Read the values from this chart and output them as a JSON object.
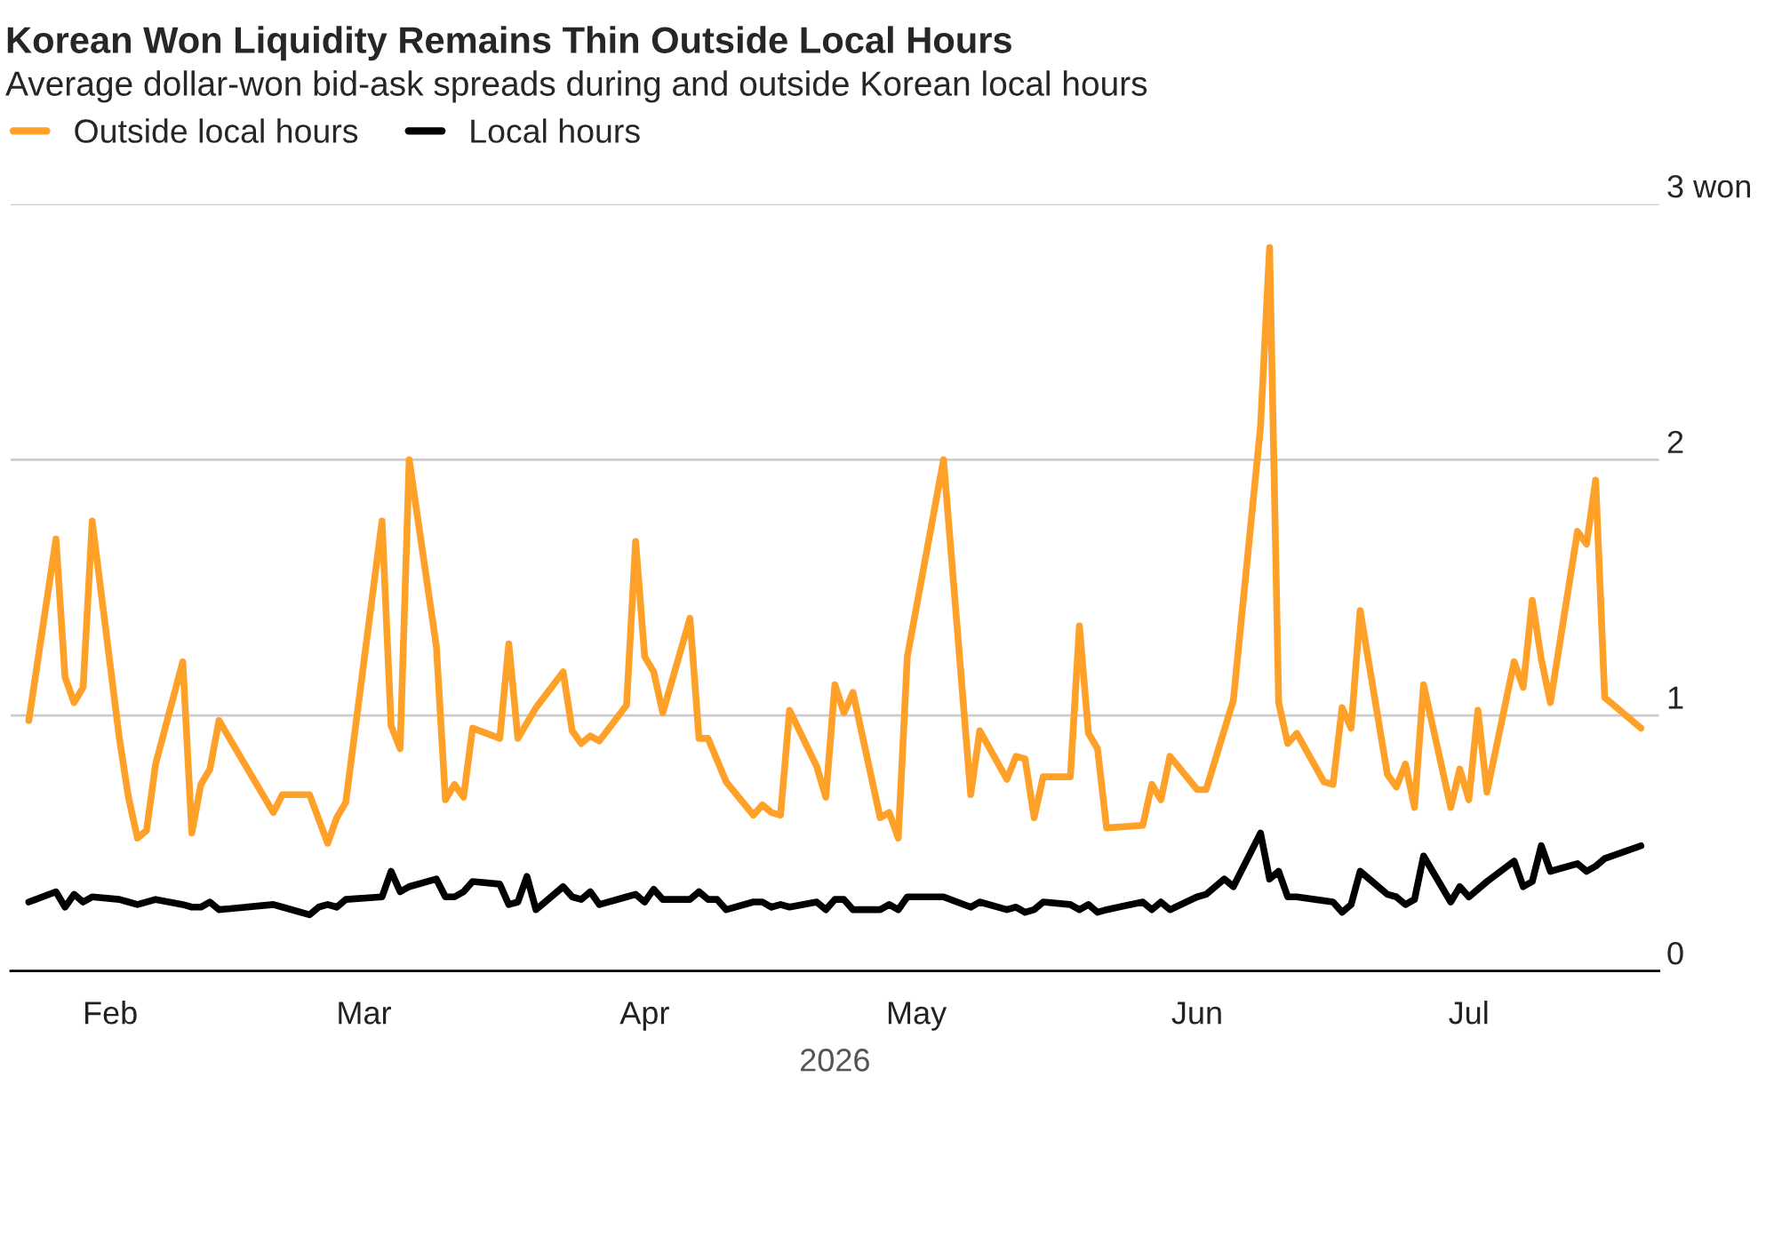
{
  "chart_data": {
    "type": "line",
    "title": "Korean Won Liquidity Remains Thin Outside Local Hours",
    "subtitle": "Average dollar-won bid-ask spreads during and outside Korean local hours",
    "xlabel": "2026",
    "xlim": [
      "2026-01-21",
      "2026-07-22"
    ],
    "xticks": [
      {
        "value": "2026-02-01",
        "label": "Feb"
      },
      {
        "value": "2026-03-01",
        "label": "Mar"
      },
      {
        "value": "2026-04-01",
        "label": "Apr"
      },
      {
        "value": "2026-05-01",
        "label": "May"
      },
      {
        "value": "2026-06-01",
        "label": "Jun"
      },
      {
        "value": "2026-07-01",
        "label": "Jul"
      }
    ],
    "ylim": [
      0,
      3
    ],
    "yticks": [
      0,
      1,
      2,
      {
        "value": 3,
        "label": "3 won"
      }
    ],
    "grid": "y",
    "legend": "top left",
    "line_style": "solid",
    "series": [
      {
        "name": "Outside local hours",
        "color": "#ffa028",
        "x": [
          "2026-01-23",
          "2026-01-26",
          "2026-01-27",
          "2026-01-28",
          "2026-01-29",
          "2026-01-30",
          "2026-02-02",
          "2026-02-03",
          "2026-02-04",
          "2026-02-05",
          "2026-02-06",
          "2026-02-09",
          "2026-02-10",
          "2026-02-11",
          "2026-02-12",
          "2026-02-13",
          "2026-02-19",
          "2026-02-20",
          "2026-02-23",
          "2026-02-25",
          "2026-02-26",
          "2026-02-27",
          "2026-03-03",
          "2026-03-04",
          "2026-03-05",
          "2026-03-06",
          "2026-03-09",
          "2026-03-10",
          "2026-03-11",
          "2026-03-12",
          "2026-03-13",
          "2026-03-16",
          "2026-03-17",
          "2026-03-18",
          "2026-03-20",
          "2026-03-23",
          "2026-03-24",
          "2026-03-25",
          "2026-03-26",
          "2026-03-27",
          "2026-03-30",
          "2026-03-31",
          "2026-04-01",
          "2026-04-02",
          "2026-04-03",
          "2026-04-06",
          "2026-04-07",
          "2026-04-08",
          "2026-04-10",
          "2026-04-13",
          "2026-04-14",
          "2026-04-15",
          "2026-04-16",
          "2026-04-17",
          "2026-04-20",
          "2026-04-21",
          "2026-04-22",
          "2026-04-23",
          "2026-04-24",
          "2026-04-27",
          "2026-04-28",
          "2026-04-29",
          "2026-04-30",
          "2026-05-04",
          "2026-05-07",
          "2026-05-08",
          "2026-05-11",
          "2026-05-12",
          "2026-05-13",
          "2026-05-14",
          "2026-05-15",
          "2026-05-18",
          "2026-05-19",
          "2026-05-20",
          "2026-05-21",
          "2026-05-22",
          "2026-05-26",
          "2026-05-27",
          "2026-05-28",
          "2026-05-29",
          "2026-06-01",
          "2026-06-02",
          "2026-06-05",
          "2026-06-08",
          "2026-06-09",
          "2026-06-10",
          "2026-06-11",
          "2026-06-12",
          "2026-06-15",
          "2026-06-16",
          "2026-06-17",
          "2026-06-18",
          "2026-06-19",
          "2026-06-22",
          "2026-06-23",
          "2026-06-24",
          "2026-06-25",
          "2026-06-26",
          "2026-06-29",
          "2026-06-30",
          "2026-07-01",
          "2026-07-02",
          "2026-07-03",
          "2026-07-06",
          "2026-07-07",
          "2026-07-08",
          "2026-07-09",
          "2026-07-10",
          "2026-07-13",
          "2026-07-14",
          "2026-07-15",
          "2026-07-16",
          "2026-07-20"
        ],
        "values": [
          0.98,
          1.69,
          1.15,
          1.05,
          1.11,
          1.76,
          0.91,
          0.68,
          0.52,
          0.55,
          0.81,
          1.21,
          0.54,
          0.73,
          0.79,
          0.98,
          0.62,
          0.69,
          0.69,
          0.5,
          0.6,
          0.66,
          1.76,
          0.96,
          0.87,
          2.0,
          1.27,
          0.67,
          0.73,
          0.68,
          0.95,
          0.91,
          1.28,
          0.91,
          1.03,
          1.17,
          0.94,
          0.89,
          0.92,
          0.9,
          1.04,
          1.68,
          1.23,
          1.17,
          1.01,
          1.38,
          0.91,
          0.91,
          0.74,
          0.61,
          0.65,
          0.62,
          0.61,
          1.02,
          0.8,
          0.68,
          1.12,
          1.01,
          1.09,
          0.6,
          0.62,
          0.52,
          1.23,
          2.0,
          0.69,
          0.94,
          0.75,
          0.84,
          0.83,
          0.6,
          0.76,
          0.76,
          1.35,
          0.93,
          0.87,
          0.56,
          0.57,
          0.73,
          0.67,
          0.84,
          0.71,
          0.71,
          1.06,
          2.13,
          2.83,
          1.05,
          0.89,
          0.93,
          0.74,
          0.73,
          1.03,
          0.95,
          1.41,
          0.77,
          0.72,
          0.81,
          0.64,
          1.12,
          0.64,
          0.79,
          0.67,
          1.02,
          0.7,
          1.21,
          1.11,
          1.45,
          1.22,
          1.05,
          1.72,
          1.67,
          1.92,
          1.07,
          0.95
        ]
      },
      {
        "name": "Local hours",
        "color": "#000000",
        "x": [
          "2026-01-23",
          "2026-01-26",
          "2026-01-27",
          "2026-01-28",
          "2026-01-29",
          "2026-01-30",
          "2026-02-02",
          "2026-02-03",
          "2026-02-04",
          "2026-02-06",
          "2026-02-09",
          "2026-02-10",
          "2026-02-11",
          "2026-02-12",
          "2026-02-13",
          "2026-02-19",
          "2026-02-20",
          "2026-02-23",
          "2026-02-24",
          "2026-02-25",
          "2026-02-26",
          "2026-02-27",
          "2026-03-03",
          "2026-03-04",
          "2026-03-05",
          "2026-03-06",
          "2026-03-09",
          "2026-03-10",
          "2026-03-11",
          "2026-03-12",
          "2026-03-13",
          "2026-03-16",
          "2026-03-17",
          "2026-03-18",
          "2026-03-19",
          "2026-03-20",
          "2026-03-23",
          "2026-03-24",
          "2026-03-25",
          "2026-03-26",
          "2026-03-27",
          "2026-03-30",
          "2026-03-31",
          "2026-04-01",
          "2026-04-02",
          "2026-04-03",
          "2026-04-06",
          "2026-04-07",
          "2026-04-08",
          "2026-04-09",
          "2026-04-10",
          "2026-04-13",
          "2026-04-14",
          "2026-04-15",
          "2026-04-16",
          "2026-04-17",
          "2026-04-20",
          "2026-04-21",
          "2026-04-22",
          "2026-04-23",
          "2026-04-24",
          "2026-04-27",
          "2026-04-28",
          "2026-04-29",
          "2026-04-30",
          "2026-05-04",
          "2026-05-07",
          "2026-05-08",
          "2026-05-11",
          "2026-05-12",
          "2026-05-13",
          "2026-05-14",
          "2026-05-15",
          "2026-05-18",
          "2026-05-19",
          "2026-05-20",
          "2026-05-21",
          "2026-05-22",
          "2026-05-26",
          "2026-05-27",
          "2026-05-28",
          "2026-05-29",
          "2026-06-01",
          "2026-06-02",
          "2026-06-04",
          "2026-06-05",
          "2026-06-08",
          "2026-06-09",
          "2026-06-10",
          "2026-06-11",
          "2026-06-12",
          "2026-06-16",
          "2026-06-17",
          "2026-06-18",
          "2026-06-19",
          "2026-06-22",
          "2026-06-23",
          "2026-06-24",
          "2026-06-25",
          "2026-06-26",
          "2026-06-29",
          "2026-06-30",
          "2026-07-01",
          "2026-07-03",
          "2026-07-06",
          "2026-07-07",
          "2026-07-08",
          "2026-07-09",
          "2026-07-10",
          "2026-07-13",
          "2026-07-14",
          "2026-07-15",
          "2026-07-16",
          "2026-07-20"
        ],
        "values": [
          0.27,
          0.31,
          0.25,
          0.3,
          0.27,
          0.29,
          0.28,
          0.27,
          0.26,
          0.28,
          0.26,
          0.25,
          0.25,
          0.27,
          0.24,
          0.26,
          0.25,
          0.22,
          0.25,
          0.26,
          0.25,
          0.28,
          0.29,
          0.39,
          0.31,
          0.33,
          0.36,
          0.29,
          0.29,
          0.31,
          0.35,
          0.34,
          0.26,
          0.27,
          0.37,
          0.24,
          0.33,
          0.29,
          0.28,
          0.31,
          0.26,
          0.29,
          0.3,
          0.27,
          0.32,
          0.28,
          0.28,
          0.31,
          0.28,
          0.28,
          0.24,
          0.27,
          0.27,
          0.25,
          0.26,
          0.25,
          0.27,
          0.24,
          0.28,
          0.28,
          0.24,
          0.24,
          0.26,
          0.24,
          0.29,
          0.29,
          0.25,
          0.27,
          0.24,
          0.25,
          0.23,
          0.24,
          0.27,
          0.26,
          0.24,
          0.26,
          0.23,
          0.24,
          0.27,
          0.24,
          0.27,
          0.24,
          0.29,
          0.3,
          0.36,
          0.33,
          0.54,
          0.36,
          0.39,
          0.29,
          0.29,
          0.27,
          0.23,
          0.26,
          0.39,
          0.3,
          0.29,
          0.26,
          0.28,
          0.45,
          0.27,
          0.33,
          0.29,
          0.35,
          0.43,
          0.33,
          0.35,
          0.49,
          0.39,
          0.42,
          0.39,
          0.41,
          0.44,
          0.49
        ]
      }
    ]
  }
}
